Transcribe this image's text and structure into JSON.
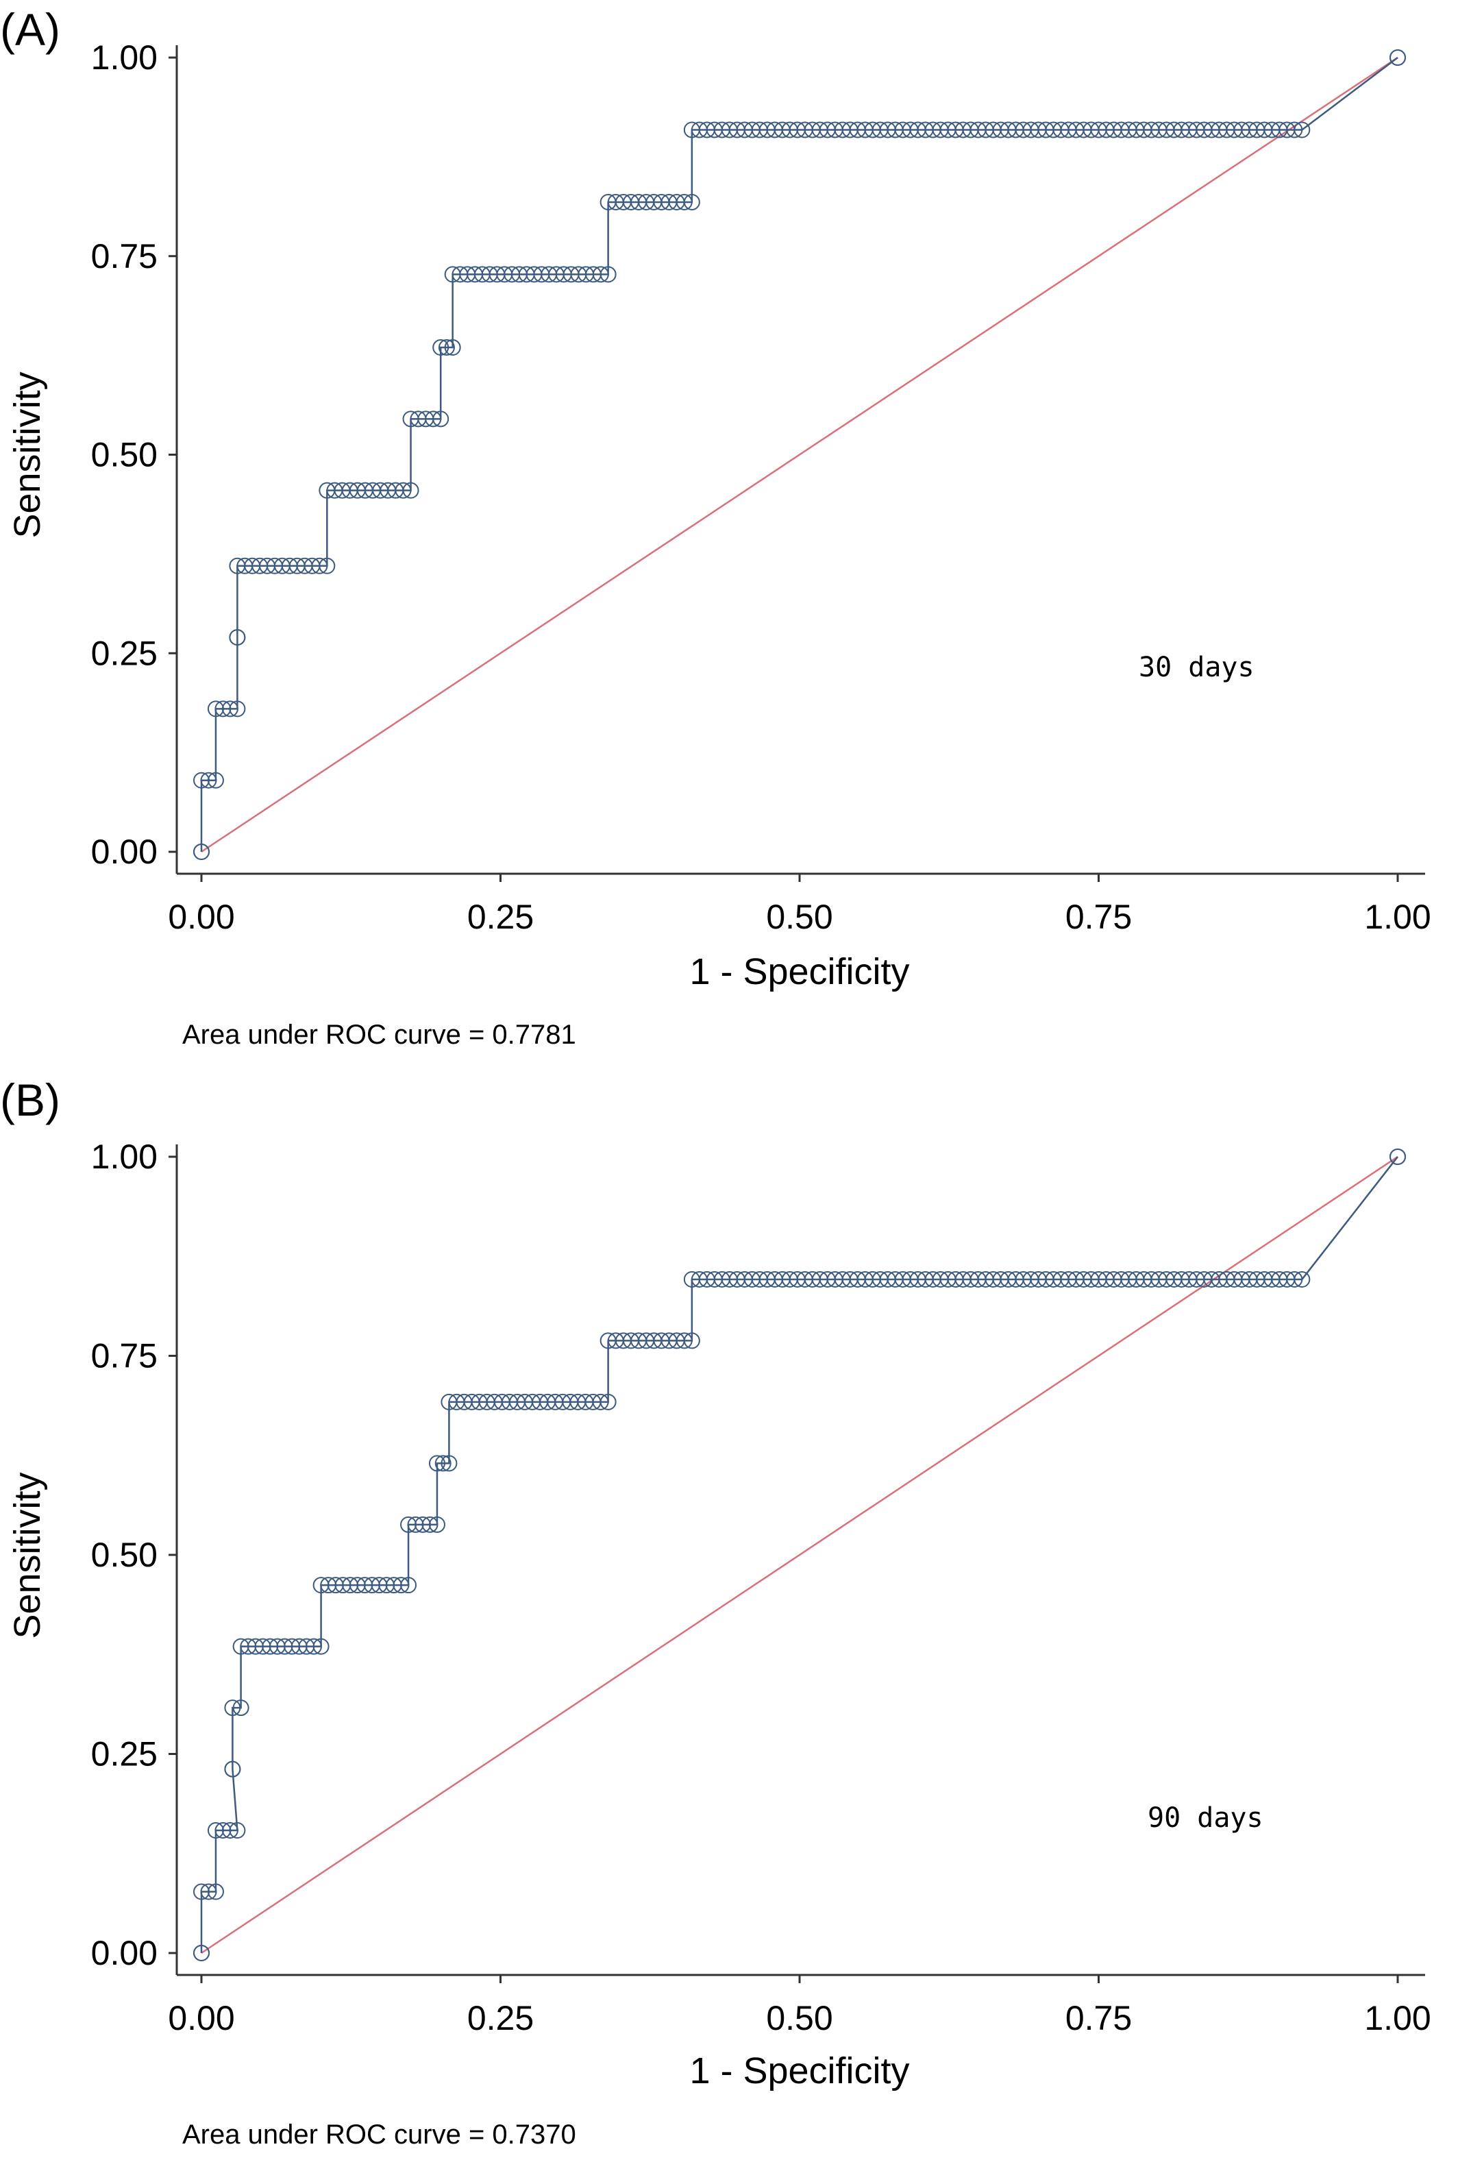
{
  "chart_data": [
    {
      "type": "line",
      "panel_label": "(A)",
      "xlabel": "1 - Specificity",
      "ylabel": "Sensitivity",
      "xticks": [
        "0.00",
        "0.25",
        "0.50",
        "0.75",
        "1.00"
      ],
      "yticks": [
        "0.00",
        "0.25",
        "0.50",
        "0.75",
        "1.00"
      ],
      "xlim": [
        0,
        1
      ],
      "ylim": [
        0,
        1
      ],
      "annotation": "30 days",
      "auc_text": "Area under ROC curve = 0.7781",
      "colors": {
        "roc": "#3d5a80",
        "reference": "#d9707a"
      },
      "reference_line": {
        "x": [
          0,
          1
        ],
        "y": [
          0,
          1
        ]
      },
      "roc_steps": [
        {
          "y": 0.0,
          "x_from": 0.0,
          "x_to": 0.0
        },
        {
          "y": 0.09,
          "x_from": 0.0,
          "x_to": 0.012
        },
        {
          "y": 0.18,
          "x_from": 0.012,
          "x_to": 0.03
        },
        {
          "y": 0.27,
          "x_from": 0.03,
          "x_to": 0.03
        },
        {
          "y": 0.36,
          "x_from": 0.03,
          "x_to": 0.105
        },
        {
          "y": 0.455,
          "x_from": 0.105,
          "x_to": 0.175
        },
        {
          "y": 0.545,
          "x_from": 0.175,
          "x_to": 0.2
        },
        {
          "y": 0.635,
          "x_from": 0.2,
          "x_to": 0.21
        },
        {
          "y": 0.727,
          "x_from": 0.21,
          "x_to": 0.34
        },
        {
          "y": 0.818,
          "x_from": 0.34,
          "x_to": 0.41
        },
        {
          "y": 0.909,
          "x_from": 0.41,
          "x_to": 0.92
        },
        {
          "y": 1.0,
          "x_from": 1.0,
          "x_to": 1.0
        }
      ]
    },
    {
      "type": "line",
      "panel_label": "(B)",
      "xlabel": "1 - Specificity",
      "ylabel": "Sensitivity",
      "xticks": [
        "0.00",
        "0.25",
        "0.50",
        "0.75",
        "1.00"
      ],
      "yticks": [
        "0.00",
        "0.25",
        "0.50",
        "0.75",
        "1.00"
      ],
      "xlim": [
        0,
        1
      ],
      "ylim": [
        0,
        1
      ],
      "annotation": "90 days",
      "auc_text": "Area under ROC curve = 0.7370",
      "colors": {
        "roc": "#3d5a80",
        "reference": "#d9707a"
      },
      "reference_line": {
        "x": [
          0,
          1
        ],
        "y": [
          0,
          1
        ]
      },
      "roc_steps": [
        {
          "y": 0.0,
          "x_from": 0.0,
          "x_to": 0.0
        },
        {
          "y": 0.077,
          "x_from": 0.0,
          "x_to": 0.012
        },
        {
          "y": 0.154,
          "x_from": 0.012,
          "x_to": 0.03
        },
        {
          "y": 0.231,
          "x_from": 0.026,
          "x_to": 0.026
        },
        {
          "y": 0.308,
          "x_from": 0.026,
          "x_to": 0.033
        },
        {
          "y": 0.385,
          "x_from": 0.033,
          "x_to": 0.1
        },
        {
          "y": 0.462,
          "x_from": 0.1,
          "x_to": 0.173
        },
        {
          "y": 0.538,
          "x_from": 0.173,
          "x_to": 0.197
        },
        {
          "y": 0.615,
          "x_from": 0.197,
          "x_to": 0.207
        },
        {
          "y": 0.692,
          "x_from": 0.207,
          "x_to": 0.34
        },
        {
          "y": 0.769,
          "x_from": 0.34,
          "x_to": 0.41
        },
        {
          "y": 0.846,
          "x_from": 0.41,
          "x_to": 0.92
        },
        {
          "y": 1.0,
          "x_from": 1.0,
          "x_to": 1.0
        }
      ]
    }
  ]
}
